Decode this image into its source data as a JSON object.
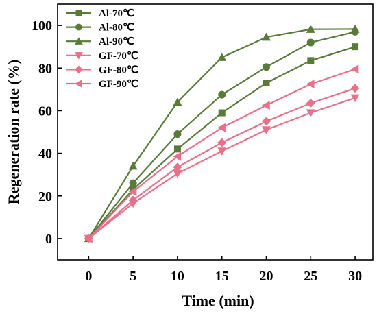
{
  "chart_data": {
    "type": "line",
    "xlabel": "Time (min)",
    "ylabel": "Regeneration rate (%)",
    "xlim": [
      -3.5,
      32
    ],
    "ylim": [
      -10,
      110
    ],
    "xticks": [
      0,
      5,
      10,
      15,
      20,
      25,
      30
    ],
    "yticks": [
      0,
      20,
      40,
      60,
      80,
      100
    ],
    "grid": false,
    "legend_position": "top-left",
    "x": [
      0,
      5,
      10,
      15,
      20,
      25,
      30
    ],
    "series": [
      {
        "name": "Al-70℃",
        "color": "#5a7a3a",
        "marker": "square",
        "values": [
          0,
          23,
          42,
          59,
          73,
          83.5,
          90
        ]
      },
      {
        "name": "Al-80℃",
        "color": "#5a7a3a",
        "marker": "circle",
        "values": [
          0,
          26,
          49,
          67.5,
          80.5,
          92,
          97
        ]
      },
      {
        "name": "Al-90℃",
        "color": "#5a7a3a",
        "marker": "triangle-up",
        "values": [
          0,
          34,
          64,
          85,
          94.5,
          98.2,
          98.3
        ]
      },
      {
        "name": "GF-70℃",
        "color": "#e8708a",
        "marker": "triangle-down",
        "values": [
          0,
          16.5,
          30.5,
          41,
          51,
          59,
          66
        ]
      },
      {
        "name": "GF-80℃",
        "color": "#e8708a",
        "marker": "diamond",
        "values": [
          0,
          18,
          33.5,
          45,
          55,
          63.5,
          70.5
        ]
      },
      {
        "name": "GF-90℃",
        "color": "#e8708a",
        "marker": "triangle-left",
        "values": [
          0,
          22,
          38.5,
          52,
          62.5,
          72.5,
          79.5
        ]
      }
    ]
  }
}
